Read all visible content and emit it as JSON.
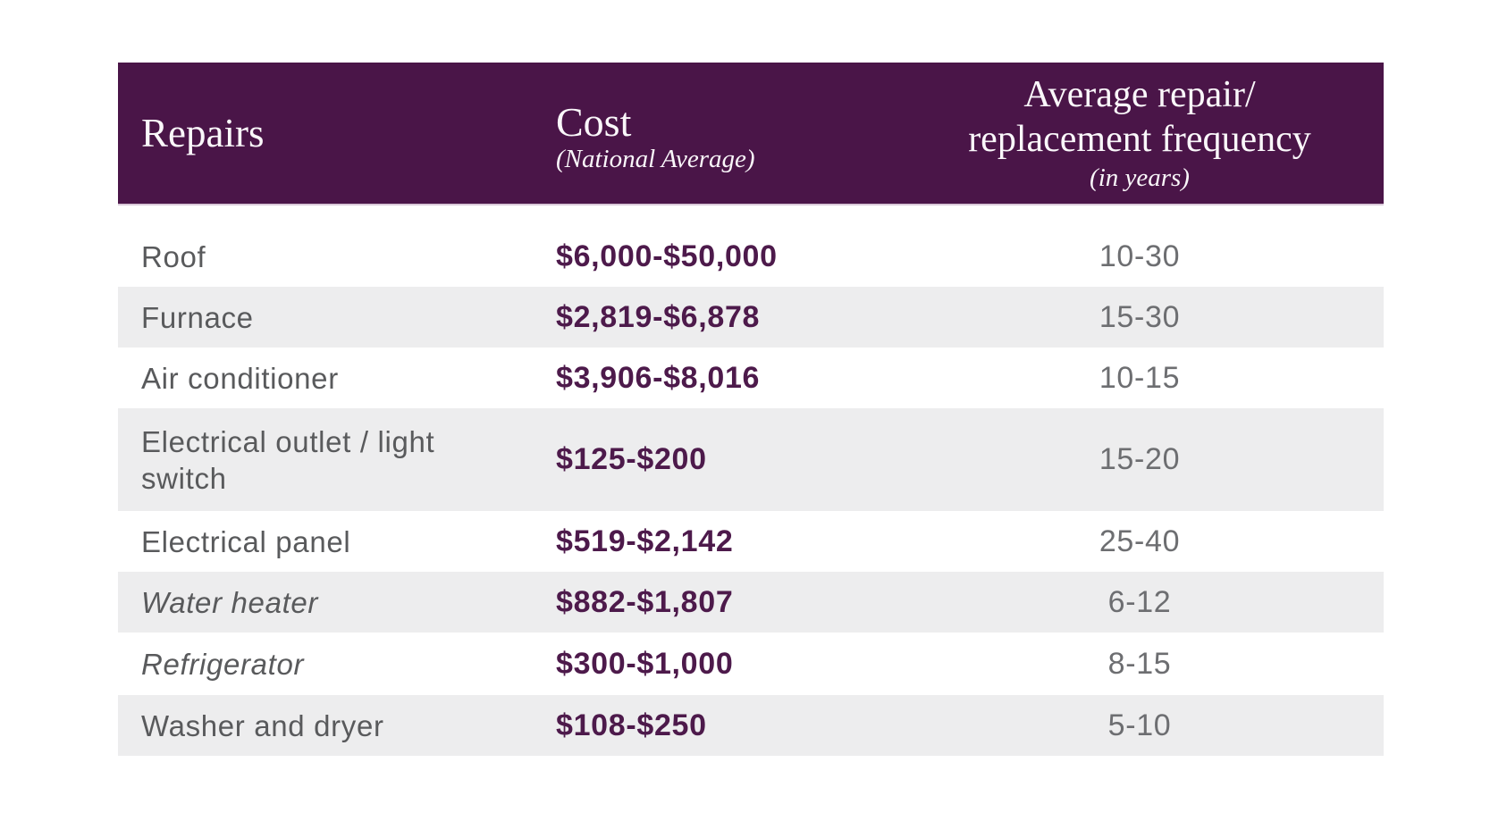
{
  "page": {
    "background": "#ffffff"
  },
  "colors": {
    "header_bg": "#4a1548",
    "header_text": "#faf7fa",
    "header_divider": "#d9c8d8",
    "row_stripe": "#ededee",
    "row_white": "#ffffff",
    "repair_text": "#595a5c",
    "cost_text": "#4d1a4b",
    "frequency_text": "#6d6e71"
  },
  "table": {
    "header": {
      "repairs_label": "Repairs",
      "cost_label": "Cost",
      "cost_sublabel": "(National Average)",
      "frequency_label_line1": "Average repair/",
      "frequency_label_line2": "replacement frequency",
      "frequency_sublabel": "(in years)"
    },
    "rows": [
      {
        "repair": "Roof",
        "cost": "$6,000-$50,000",
        "frequency": "10-30",
        "italic": false
      },
      {
        "repair": "Furnace",
        "cost": "$2,819-$6,878",
        "frequency": "15-30",
        "italic": false
      },
      {
        "repair": "Air conditioner",
        "cost": "$3,906-$8,016",
        "frequency": "10-15",
        "italic": false
      },
      {
        "repair": "Electrical outlet / light switch",
        "cost": "$125-$200",
        "frequency": "15-20",
        "italic": false
      },
      {
        "repair": "Electrical panel",
        "cost": "$519-$2,142",
        "frequency": "25-40",
        "italic": false
      },
      {
        "repair": "Water heater",
        "cost": "$882-$1,807",
        "frequency": "6-12",
        "italic": true
      },
      {
        "repair": "Refrigerator",
        "cost": "$300-$1,000",
        "frequency": "8-15",
        "italic": true
      },
      {
        "repair": "Washer and dryer",
        "cost": "$108-$250",
        "frequency": "5-10",
        "italic": false
      }
    ]
  },
  "chart_data": {
    "type": "table",
    "title": "",
    "columns": [
      "Repairs",
      "Cost (National Average)",
      "Average repair/replacement frequency (in years)"
    ],
    "rows": [
      [
        "Roof",
        "$6,000-$50,000",
        "10-30"
      ],
      [
        "Furnace",
        "$2,819-$6,878",
        "15-30"
      ],
      [
        "Air conditioner",
        "$3,906-$8,016",
        "10-15"
      ],
      [
        "Electrical outlet / light switch",
        "$125-$200",
        "15-20"
      ],
      [
        "Electrical panel",
        "$519-$2,142",
        "25-40"
      ],
      [
        "Water heater",
        "$882-$1,807",
        "6-12"
      ],
      [
        "Refrigerator",
        "$300-$1,000",
        "8-15"
      ],
      [
        "Washer and dryer",
        "$108-$250",
        "5-10"
      ]
    ],
    "layout": {
      "striped_rows": true,
      "stripe_on": "even",
      "grid": false
    }
  }
}
